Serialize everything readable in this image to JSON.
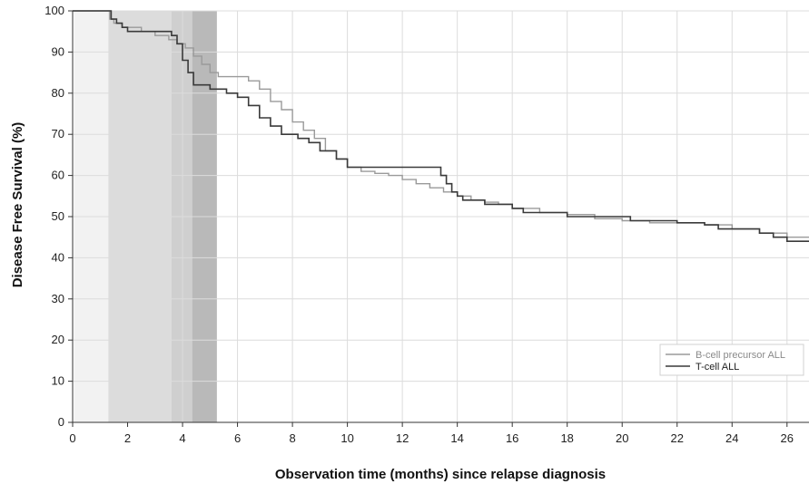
{
  "chart_data": {
    "type": "line",
    "xlabel": "Observation time (months) since relapse diagnosis",
    "ylabel": "Disease Free Survival (%)",
    "xlim": [
      0,
      26.8
    ],
    "ylim": [
      0,
      100
    ],
    "xticks": [
      0,
      2,
      4,
      6,
      8,
      10,
      12,
      14,
      16,
      18,
      20,
      22,
      24,
      26
    ],
    "yticks": [
      0,
      10,
      20,
      30,
      40,
      50,
      60,
      70,
      80,
      90,
      100
    ],
    "grid": true,
    "legend_position": "bottom-right",
    "shaded_regions": [
      {
        "x_start": 0.05,
        "x_end": 1.3,
        "fill": "#f2f2f2"
      },
      {
        "x_start": 1.3,
        "x_end": 3.6,
        "fill": "#dcdcdc"
      },
      {
        "x_start": 3.6,
        "x_end": 4.35,
        "fill": "#cfcfcf"
      },
      {
        "x_start": 4.35,
        "x_end": 5.25,
        "fill": "#b9b9b9"
      }
    ],
    "series": [
      {
        "name": "B-cell precursor ALL",
        "color": "#9a9a9a",
        "points": [
          [
            0,
            100
          ],
          [
            1.2,
            100
          ],
          [
            1.35,
            98
          ],
          [
            1.5,
            97
          ],
          [
            1.8,
            96
          ],
          [
            2.5,
            95
          ],
          [
            3.0,
            94
          ],
          [
            3.5,
            93
          ],
          [
            3.8,
            92
          ],
          [
            4.1,
            91
          ],
          [
            4.4,
            89
          ],
          [
            4.7,
            87
          ],
          [
            5.0,
            85
          ],
          [
            5.3,
            84
          ],
          [
            6.0,
            84
          ],
          [
            6.4,
            83
          ],
          [
            6.8,
            81
          ],
          [
            7.2,
            78
          ],
          [
            7.6,
            76
          ],
          [
            8.0,
            73
          ],
          [
            8.4,
            71
          ],
          [
            8.8,
            69
          ],
          [
            9.2,
            66
          ],
          [
            9.6,
            64
          ],
          [
            10.0,
            62
          ],
          [
            10.5,
            61
          ],
          [
            11.0,
            60.5
          ],
          [
            11.5,
            60
          ],
          [
            12.0,
            59
          ],
          [
            12.5,
            58
          ],
          [
            13.0,
            57
          ],
          [
            13.5,
            56
          ],
          [
            14.0,
            55
          ],
          [
            14.5,
            54
          ],
          [
            15.0,
            53.5
          ],
          [
            15.5,
            53
          ],
          [
            16.0,
            52
          ],
          [
            17.0,
            51
          ],
          [
            18.0,
            50.5
          ],
          [
            19.0,
            49.5
          ],
          [
            20.0,
            49
          ],
          [
            21.0,
            48.5
          ],
          [
            22.0,
            48.5
          ],
          [
            23.0,
            48
          ],
          [
            24.0,
            47
          ],
          [
            25.0,
            46
          ],
          [
            26.0,
            45
          ],
          [
            26.8,
            45
          ]
        ]
      },
      {
        "name": "T-cell ALL",
        "color": "#3a3a3a",
        "points": [
          [
            0,
            100
          ],
          [
            1.25,
            100
          ],
          [
            1.4,
            98
          ],
          [
            1.6,
            97
          ],
          [
            1.8,
            96
          ],
          [
            2.0,
            95
          ],
          [
            3.6,
            94
          ],
          [
            3.8,
            92
          ],
          [
            4.0,
            88
          ],
          [
            4.2,
            85
          ],
          [
            4.4,
            82
          ],
          [
            5.0,
            81
          ],
          [
            5.6,
            80
          ],
          [
            6.0,
            79
          ],
          [
            6.4,
            77
          ],
          [
            6.8,
            74
          ],
          [
            7.2,
            72
          ],
          [
            7.6,
            70
          ],
          [
            8.2,
            69
          ],
          [
            8.6,
            68
          ],
          [
            9.0,
            66
          ],
          [
            9.6,
            64
          ],
          [
            10.0,
            62
          ],
          [
            12.0,
            62
          ],
          [
            13.2,
            62
          ],
          [
            13.4,
            60
          ],
          [
            13.6,
            58
          ],
          [
            13.8,
            56
          ],
          [
            14.0,
            55
          ],
          [
            14.2,
            54
          ],
          [
            15.0,
            53
          ],
          [
            16.0,
            52
          ],
          [
            16.4,
            51
          ],
          [
            18.0,
            50
          ],
          [
            20.0,
            50
          ],
          [
            20.3,
            49
          ],
          [
            22.0,
            48.5
          ],
          [
            23.0,
            48
          ],
          [
            23.5,
            47
          ],
          [
            24.5,
            47
          ],
          [
            25.0,
            46
          ],
          [
            25.5,
            45
          ],
          [
            26.0,
            44
          ],
          [
            26.8,
            44
          ]
        ]
      }
    ]
  }
}
